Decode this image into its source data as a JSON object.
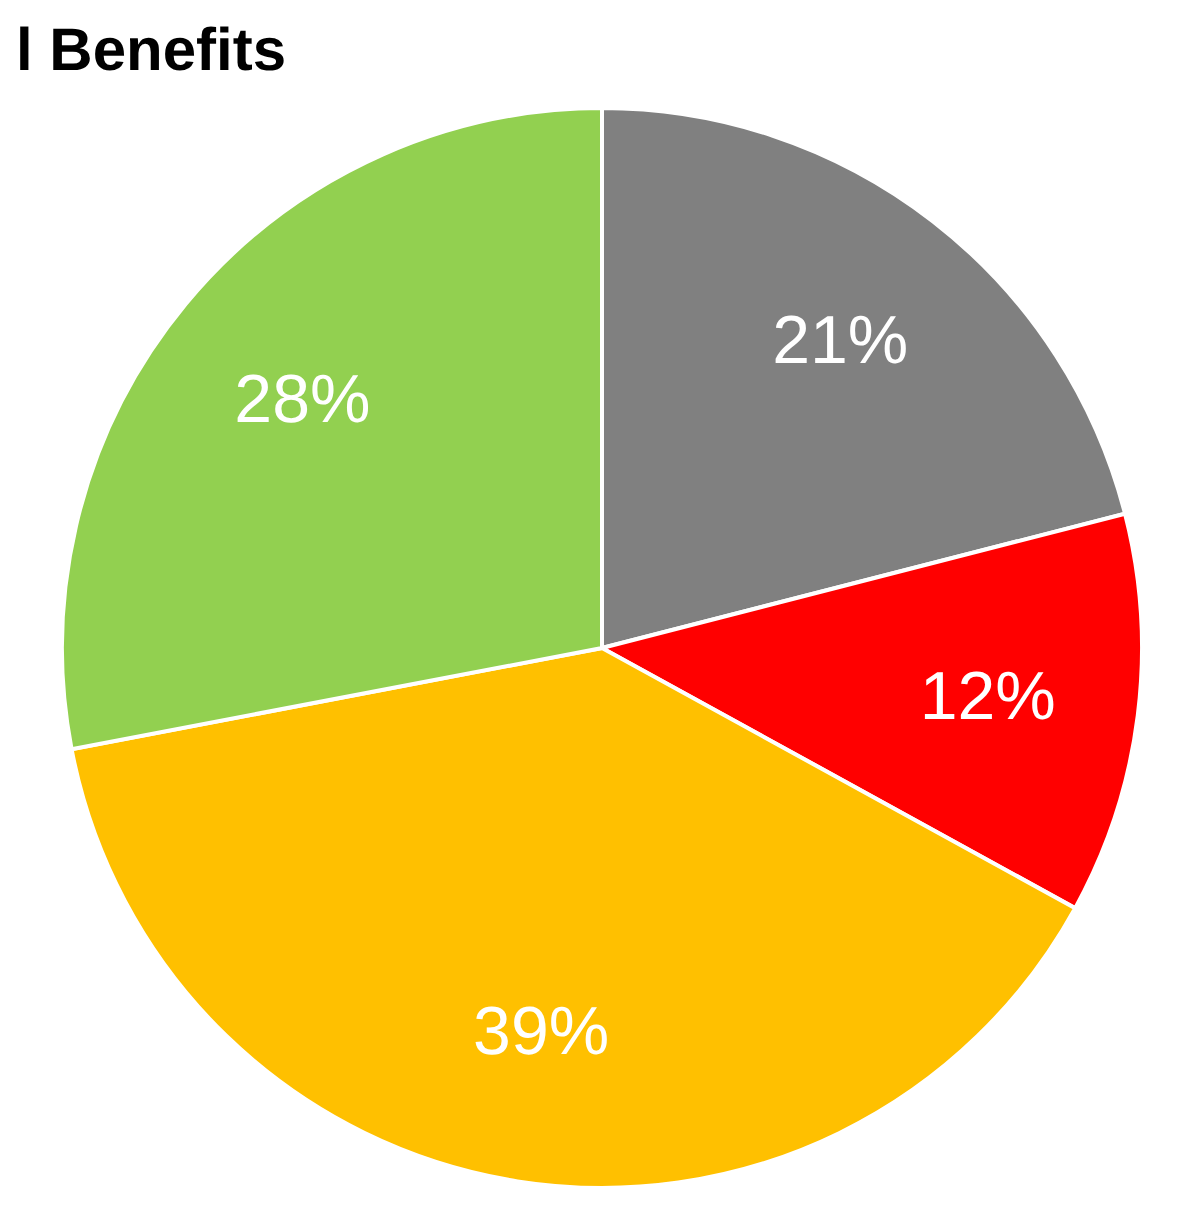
{
  "chart_data": {
    "type": "pie",
    "title": "l Benefits",
    "categories": [
      null,
      null,
      null,
      null
    ],
    "values": [
      21,
      12,
      39,
      28
    ],
    "colors": [
      "#808080",
      "#ff0000",
      "#ffc000",
      "#92d050"
    ],
    "value_labels": [
      "21%",
      "12%",
      "39%",
      "28%"
    ]
  }
}
